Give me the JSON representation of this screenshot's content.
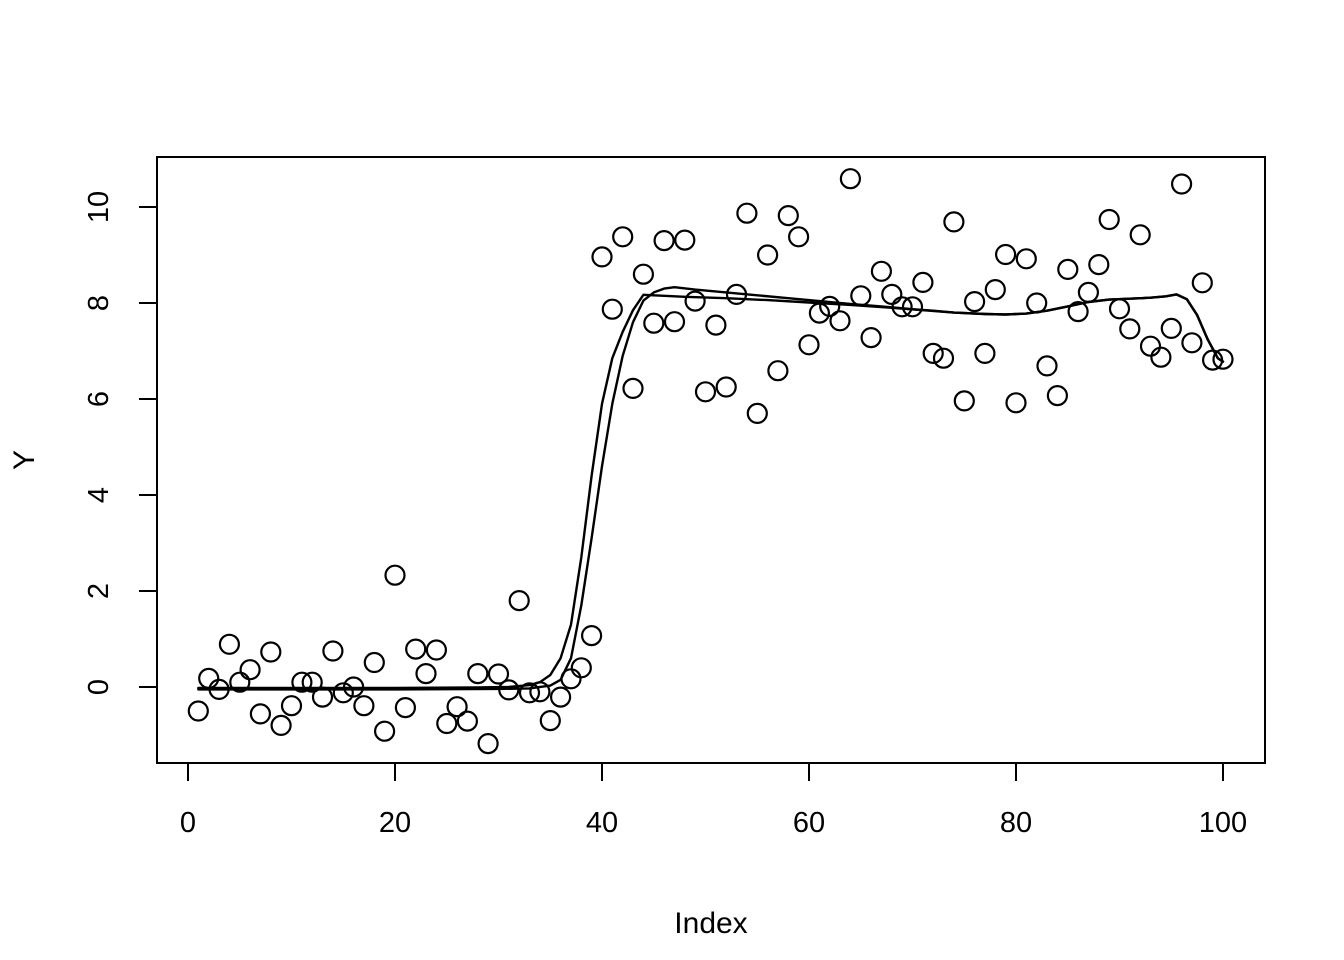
{
  "page": {
    "background_color": "#ffffff",
    "foreground_color": "#000000",
    "description": "R base-graphics scatter plot of a noisy step function with two smoothing-fit curves"
  },
  "chart_data": {
    "type": "scatter",
    "title": "",
    "xlabel": "Index",
    "ylabel": "Y",
    "grid": false,
    "legend_position": "none",
    "marker": "open-circle",
    "x_ticks": [
      0,
      20,
      40,
      60,
      80,
      100
    ],
    "y_ticks": [
      0,
      2,
      4,
      6,
      8,
      10
    ],
    "xlim": [
      -3,
      104
    ],
    "ylim": [
      -1.6,
      11.05
    ],
    "x_rule": "x equals index 1..100",
    "points_y": [
      -0.5,
      0.18,
      -0.05,
      0.89,
      0.1,
      0.36,
      -0.56,
      0.73,
      -0.8,
      -0.39,
      0.1,
      0.1,
      -0.21,
      0.75,
      -0.12,
      0.0,
      -0.39,
      0.51,
      -0.92,
      2.33,
      -0.43,
      0.79,
      0.28,
      0.77,
      -0.76,
      -0.41,
      -0.71,
      0.28,
      -1.18,
      0.27,
      -0.06,
      1.8,
      -0.12,
      -0.1,
      -0.7,
      -0.21,
      0.17,
      0.4,
      1.07,
      8.96,
      7.87,
      9.38,
      6.22,
      8.6,
      7.58,
      9.3,
      7.61,
      9.31,
      8.04,
      6.15,
      7.54,
      6.25,
      8.18,
      9.87,
      5.7,
      9.0,
      6.59,
      9.82,
      9.38,
      7.13,
      7.79,
      7.93,
      7.63,
      10.59,
      8.15,
      7.28,
      8.66,
      8.18,
      7.92,
      7.92,
      8.43,
      6.95,
      6.85,
      9.69,
      5.96,
      8.03,
      6.95,
      8.28,
      9.01,
      5.92,
      8.92,
      8.0,
      6.69,
      6.07,
      8.7,
      7.82,
      8.22,
      8.8,
      9.74,
      7.88,
      7.46,
      9.42,
      7.1,
      6.87,
      7.47,
      10.48,
      7.17,
      8.42,
      6.81,
      6.83
    ],
    "fit_lines": [
      {
        "name": "fit-line-sharp-step",
        "points": [
          [
            1,
            -0.02
          ],
          [
            10,
            -0.02
          ],
          [
            20,
            -0.02
          ],
          [
            28,
            -0.01
          ],
          [
            31,
            0.0
          ],
          [
            33,
            0.04
          ],
          [
            34,
            0.1
          ],
          [
            35,
            0.25
          ],
          [
            36,
            0.6
          ],
          [
            37,
            1.3
          ],
          [
            38,
            2.7
          ],
          [
            39,
            4.4
          ],
          [
            40,
            5.9
          ],
          [
            41,
            6.85
          ],
          [
            42,
            7.4
          ],
          [
            43,
            7.85
          ],
          [
            44,
            8.17
          ],
          [
            46,
            8.15
          ],
          [
            48,
            8.13
          ],
          [
            52,
            8.1
          ],
          [
            56,
            8.06
          ],
          [
            60,
            8.01
          ],
          [
            64,
            7.96
          ],
          [
            68,
            7.9
          ],
          [
            71,
            7.85
          ],
          [
            74,
            7.8
          ],
          [
            77,
            7.77
          ],
          [
            79,
            7.76
          ],
          [
            81,
            7.78
          ],
          [
            83,
            7.84
          ],
          [
            85,
            7.93
          ],
          [
            87,
            8.02
          ],
          [
            89,
            8.07
          ],
          [
            91,
            8.09
          ],
          [
            93,
            8.11
          ],
          [
            94.5,
            8.14
          ],
          [
            95.5,
            8.18
          ],
          [
            96.5,
            8.08
          ],
          [
            97.5,
            7.75
          ],
          [
            98.5,
            7.25
          ],
          [
            99.5,
            6.85
          ],
          [
            100,
            6.78
          ]
        ]
      },
      {
        "name": "fit-line-overshoot",
        "points": [
          [
            1,
            -0.05
          ],
          [
            10,
            -0.05
          ],
          [
            20,
            -0.05
          ],
          [
            30,
            -0.04
          ],
          [
            33,
            -0.03
          ],
          [
            35,
            0.03
          ],
          [
            36,
            0.15
          ],
          [
            37,
            0.6
          ],
          [
            38,
            1.7
          ],
          [
            39,
            3.1
          ],
          [
            40,
            4.6
          ],
          [
            41,
            5.9
          ],
          [
            42,
            6.9
          ],
          [
            43,
            7.6
          ],
          [
            44,
            8.05
          ],
          [
            45,
            8.22
          ],
          [
            46,
            8.3
          ],
          [
            47,
            8.33
          ],
          [
            49,
            8.28
          ],
          [
            52,
            8.22
          ],
          [
            55,
            8.16
          ],
          [
            58,
            8.1
          ],
          [
            61,
            8.04
          ],
          [
            64,
            7.98
          ],
          [
            67,
            7.93
          ],
          [
            70,
            7.87
          ],
          [
            72,
            7.84
          ],
          [
            74,
            7.8
          ],
          [
            77,
            7.77
          ],
          [
            79,
            7.76
          ],
          [
            81,
            7.78
          ],
          [
            83,
            7.84
          ],
          [
            85,
            7.93
          ],
          [
            87,
            8.02
          ],
          [
            89,
            8.07
          ],
          [
            91,
            8.09
          ],
          [
            93,
            8.11
          ],
          [
            94.5,
            8.14
          ],
          [
            95.5,
            8.18
          ],
          [
            96.5,
            8.08
          ],
          [
            97.5,
            7.75
          ],
          [
            98.5,
            7.25
          ],
          [
            99.5,
            6.85
          ],
          [
            100,
            6.78
          ]
        ]
      }
    ]
  }
}
